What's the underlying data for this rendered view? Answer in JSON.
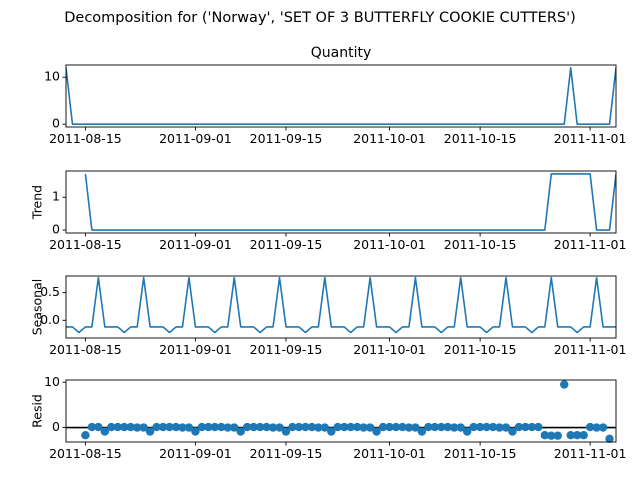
{
  "figure": {
    "suptitle": "Decomposition for ('Norway', 'SET OF 3 BUTTERFLY COOKIE CUTTERS')"
  },
  "colors": {
    "series": "#1f77b4",
    "axis": "#000000",
    "zero_line": "#000000"
  },
  "chart_data": [
    {
      "id": "observed",
      "type": "line",
      "title": "Quantity",
      "ylabel": "",
      "x_start": "2011-08-12",
      "x_end": "2011-11-05",
      "xticks": [
        "2011-08-15",
        "2011-09-01",
        "2011-09-15",
        "2011-10-01",
        "2011-10-15",
        "2011-11-01"
      ],
      "ylim": [
        -0.6,
        12.6
      ],
      "yticks": [
        0,
        10
      ],
      "points": [
        {
          "x": "2011-08-12",
          "y": 12
        },
        {
          "x": "2011-08-13",
          "y": 0
        },
        {
          "x": "2011-10-28",
          "y": 0
        },
        {
          "x": "2011-10-29",
          "y": 12
        },
        {
          "x": "2011-10-30",
          "y": 0
        },
        {
          "x": "2011-11-04",
          "y": 0
        },
        {
          "x": "2011-11-05",
          "y": 12
        }
      ]
    },
    {
      "id": "trend",
      "type": "line",
      "title": "",
      "ylabel": "Trend",
      "x_start": "2011-08-12",
      "x_end": "2011-11-05",
      "xticks": [
        "2011-08-15",
        "2011-09-01",
        "2011-09-15",
        "2011-10-01",
        "2011-10-15",
        "2011-11-01"
      ],
      "ylim": [
        -0.09,
        1.8
      ],
      "yticks": [
        0,
        1
      ],
      "points": [
        {
          "x": "2011-08-15",
          "y": 1.71
        },
        {
          "x": "2011-08-16",
          "y": 0
        },
        {
          "x": "2011-10-25",
          "y": 0
        },
        {
          "x": "2011-10-26",
          "y": 1.71
        },
        {
          "x": "2011-11-01",
          "y": 1.71
        },
        {
          "x": "2011-11-02",
          "y": 0
        },
        {
          "x": "2011-11-04",
          "y": 0
        },
        {
          "x": "2011-11-05",
          "y": 1.71
        }
      ]
    },
    {
      "id": "seasonal",
      "type": "line",
      "title": "",
      "ylabel": "Seasonal",
      "x_start": "2011-08-12",
      "x_end": "2011-11-05",
      "xticks": [
        "2011-08-15",
        "2011-09-01",
        "2011-09-15",
        "2011-10-01",
        "2011-10-15",
        "2011-11-01"
      ],
      "ylim": [
        -0.32,
        0.8
      ],
      "yticks": [
        0,
        0.5
      ],
      "ytick_labels": [
        "0.0",
        "0.5"
      ],
      "period_start": "2011-08-11",
      "period_values": [
        -0.12,
        -0.12,
        -0.12,
        -0.22,
        -0.12,
        -0.12,
        0.77
      ],
      "x_end_exclusive": "2011-11-06"
    },
    {
      "id": "resid",
      "type": "scatter",
      "title": "",
      "ylabel": "Resid",
      "x_start": "2011-08-12",
      "x_end": "2011-11-05",
      "xticks": [
        "2011-08-15",
        "2011-09-01",
        "2011-09-15",
        "2011-10-01",
        "2011-10-15",
        "2011-11-01"
      ],
      "ylim": [
        -3.2,
        10.5
      ],
      "yticks": [
        0,
        10
      ],
      "zero_line": true,
      "points": [
        {
          "x": "2011-08-15",
          "y": -1.7
        },
        {
          "x": "2011-08-16",
          "y": 0.1
        },
        {
          "x": "2011-08-17",
          "y": 0.1
        },
        {
          "x": "2011-08-18",
          "y": -0.9
        },
        {
          "x": "2011-08-19",
          "y": 0.1
        },
        {
          "x": "2011-08-20",
          "y": 0.1
        },
        {
          "x": "2011-08-21",
          "y": 0.1
        },
        {
          "x": "2011-08-22",
          "y": 0.1
        },
        {
          "x": "2011-08-23",
          "y": 0.0
        },
        {
          "x": "2011-08-24",
          "y": 0.0
        },
        {
          "x": "2011-08-25",
          "y": -0.9
        },
        {
          "x": "2011-08-26",
          "y": 0.1
        },
        {
          "x": "2011-08-27",
          "y": 0.1
        },
        {
          "x": "2011-08-28",
          "y": 0.1
        },
        {
          "x": "2011-08-29",
          "y": 0.1
        },
        {
          "x": "2011-08-30",
          "y": 0.0
        },
        {
          "x": "2011-08-31",
          "y": 0.0
        },
        {
          "x": "2011-09-01",
          "y": -0.9
        },
        {
          "x": "2011-09-02",
          "y": 0.1
        },
        {
          "x": "2011-09-03",
          "y": 0.1
        },
        {
          "x": "2011-09-04",
          "y": 0.1
        },
        {
          "x": "2011-09-05",
          "y": 0.1
        },
        {
          "x": "2011-09-06",
          "y": 0.0
        },
        {
          "x": "2011-09-07",
          "y": 0.0
        },
        {
          "x": "2011-09-08",
          "y": -0.9
        },
        {
          "x": "2011-09-09",
          "y": 0.1
        },
        {
          "x": "2011-09-10",
          "y": 0.1
        },
        {
          "x": "2011-09-11",
          "y": 0.1
        },
        {
          "x": "2011-09-12",
          "y": 0.1
        },
        {
          "x": "2011-09-13",
          "y": 0.0
        },
        {
          "x": "2011-09-14",
          "y": 0.0
        },
        {
          "x": "2011-09-15",
          "y": -0.9
        },
        {
          "x": "2011-09-16",
          "y": 0.1
        },
        {
          "x": "2011-09-17",
          "y": 0.1
        },
        {
          "x": "2011-09-18",
          "y": 0.1
        },
        {
          "x": "2011-09-19",
          "y": 0.1
        },
        {
          "x": "2011-09-20",
          "y": 0.0
        },
        {
          "x": "2011-09-21",
          "y": 0.0
        },
        {
          "x": "2011-09-22",
          "y": -0.9
        },
        {
          "x": "2011-09-23",
          "y": 0.1
        },
        {
          "x": "2011-09-24",
          "y": 0.1
        },
        {
          "x": "2011-09-25",
          "y": 0.1
        },
        {
          "x": "2011-09-26",
          "y": 0.1
        },
        {
          "x": "2011-09-27",
          "y": 0.0
        },
        {
          "x": "2011-09-28",
          "y": 0.0
        },
        {
          "x": "2011-09-29",
          "y": -0.9
        },
        {
          "x": "2011-09-30",
          "y": 0.1
        },
        {
          "x": "2011-10-01",
          "y": 0.1
        },
        {
          "x": "2011-10-02",
          "y": 0.1
        },
        {
          "x": "2011-10-03",
          "y": 0.1
        },
        {
          "x": "2011-10-04",
          "y": 0.0
        },
        {
          "x": "2011-10-05",
          "y": 0.0
        },
        {
          "x": "2011-10-06",
          "y": -0.9
        },
        {
          "x": "2011-10-07",
          "y": 0.1
        },
        {
          "x": "2011-10-08",
          "y": 0.1
        },
        {
          "x": "2011-10-09",
          "y": 0.1
        },
        {
          "x": "2011-10-10",
          "y": 0.1
        },
        {
          "x": "2011-10-11",
          "y": 0.0
        },
        {
          "x": "2011-10-12",
          "y": 0.0
        },
        {
          "x": "2011-10-13",
          "y": -0.9
        },
        {
          "x": "2011-10-14",
          "y": 0.1
        },
        {
          "x": "2011-10-15",
          "y": 0.1
        },
        {
          "x": "2011-10-16",
          "y": 0.1
        },
        {
          "x": "2011-10-17",
          "y": 0.1
        },
        {
          "x": "2011-10-18",
          "y": 0.0
        },
        {
          "x": "2011-10-19",
          "y": 0.0
        },
        {
          "x": "2011-10-20",
          "y": -0.9
        },
        {
          "x": "2011-10-21",
          "y": 0.1
        },
        {
          "x": "2011-10-22",
          "y": 0.1
        },
        {
          "x": "2011-10-23",
          "y": 0.1
        },
        {
          "x": "2011-10-24",
          "y": 0.1
        },
        {
          "x": "2011-10-25",
          "y": -1.7
        },
        {
          "x": "2011-10-26",
          "y": -1.8
        },
        {
          "x": "2011-10-27",
          "y": -1.8
        },
        {
          "x": "2011-10-28",
          "y": 9.5
        },
        {
          "x": "2011-10-29",
          "y": -1.7
        },
        {
          "x": "2011-10-30",
          "y": -1.7
        },
        {
          "x": "2011-10-31",
          "y": -1.7
        },
        {
          "x": "2011-11-01",
          "y": 0.1
        },
        {
          "x": "2011-11-02",
          "y": 0.0
        },
        {
          "x": "2011-11-03",
          "y": 0.0
        },
        {
          "x": "2011-11-04",
          "y": -2.5
        }
      ]
    }
  ]
}
